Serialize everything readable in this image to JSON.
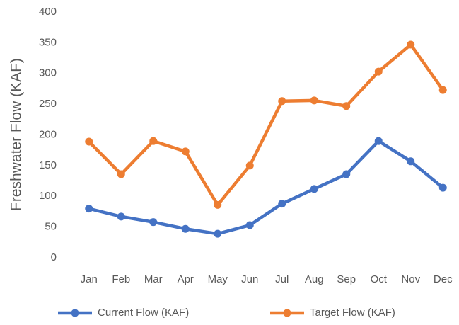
{
  "chart_data": {
    "type": "line",
    "ylabel": "Freshwater Flow (KAF)",
    "categories": [
      "Jan",
      "Feb",
      "Mar",
      "Apr",
      "May",
      "Jun",
      "Jul",
      "Aug",
      "Sep",
      "Oct",
      "Nov",
      "Dec"
    ],
    "series": [
      {
        "name": "Current Flow (KAF)",
        "color": "#4472c4",
        "values": [
          80,
          67,
          58,
          47,
          39,
          53,
          88,
          112,
          136,
          190,
          157,
          114
        ]
      },
      {
        "name": "Target Flow (KAF)",
        "color": "#ed7d31",
        "values": [
          189,
          136,
          190,
          173,
          86,
          150,
          255,
          256,
          247,
          303,
          347,
          273
        ]
      }
    ],
    "ylim": [
      0,
      400
    ],
    "yticks": [
      0,
      50,
      100,
      150,
      200,
      250,
      300,
      350,
      400
    ],
    "grid": false,
    "legend": "bottom"
  }
}
